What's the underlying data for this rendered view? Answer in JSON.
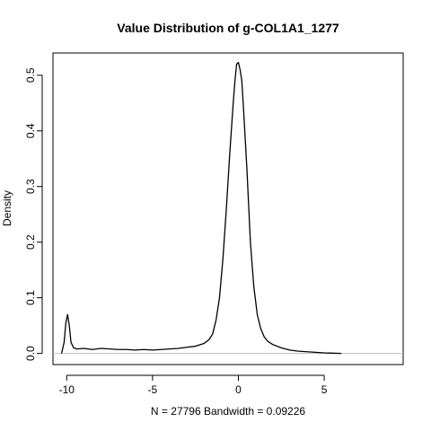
{
  "chart_data": {
    "type": "line",
    "title": "Value Distribution of g-COL1A1_1277",
    "xlabel": "N = 27796   Bandwidth = 0.09226",
    "ylabel": "Density",
    "xlim": [
      -10.8,
      9.6
    ],
    "ylim": [
      -0.02,
      0.54
    ],
    "x_ticks": [
      -10,
      -5,
      0,
      5
    ],
    "x_tick_labels": [
      "-10",
      "-5",
      "0",
      "5"
    ],
    "y_ticks": [
      0.0,
      0.1,
      0.2,
      0.3,
      0.4,
      0.5
    ],
    "y_tick_labels": [
      "0.0",
      "0.1",
      "0.2",
      "0.3",
      "0.4",
      "0.5"
    ],
    "baseline": 0,
    "grid": false,
    "series": [
      {
        "x": [
          -10.3,
          -10.15,
          -10.05,
          -9.95,
          -9.85,
          -9.75,
          -9.6,
          -9.4,
          -9.0,
          -8.5,
          -8.0,
          -7.5,
          -7.0,
          -6.5,
          -6.0,
          -5.5,
          -5.0,
          -4.5,
          -4.0,
          -3.5,
          -3.0,
          -2.5,
          -2.0,
          -1.7,
          -1.5,
          -1.3,
          -1.1,
          -0.9,
          -0.7,
          -0.5,
          -0.3,
          -0.2,
          -0.1,
          0.0,
          0.1,
          0.2,
          0.3,
          0.5,
          0.7,
          0.9,
          1.1,
          1.3,
          1.5,
          1.7,
          2.0,
          2.5,
          3.0,
          3.5,
          4.0,
          4.5,
          5.0,
          5.5,
          6.0
        ],
        "y": [
          0.0,
          0.02,
          0.055,
          0.07,
          0.05,
          0.02,
          0.01,
          0.008,
          0.009,
          0.007,
          0.009,
          0.008,
          0.007,
          0.007,
          0.006,
          0.007,
          0.006,
          0.007,
          0.008,
          0.009,
          0.011,
          0.013,
          0.018,
          0.025,
          0.035,
          0.06,
          0.1,
          0.17,
          0.26,
          0.36,
          0.45,
          0.49,
          0.52,
          0.523,
          0.51,
          0.49,
          0.44,
          0.33,
          0.2,
          0.12,
          0.07,
          0.045,
          0.03,
          0.022,
          0.016,
          0.01,
          0.006,
          0.004,
          0.003,
          0.002,
          0.001,
          0.0005,
          0.0
        ]
      }
    ]
  }
}
